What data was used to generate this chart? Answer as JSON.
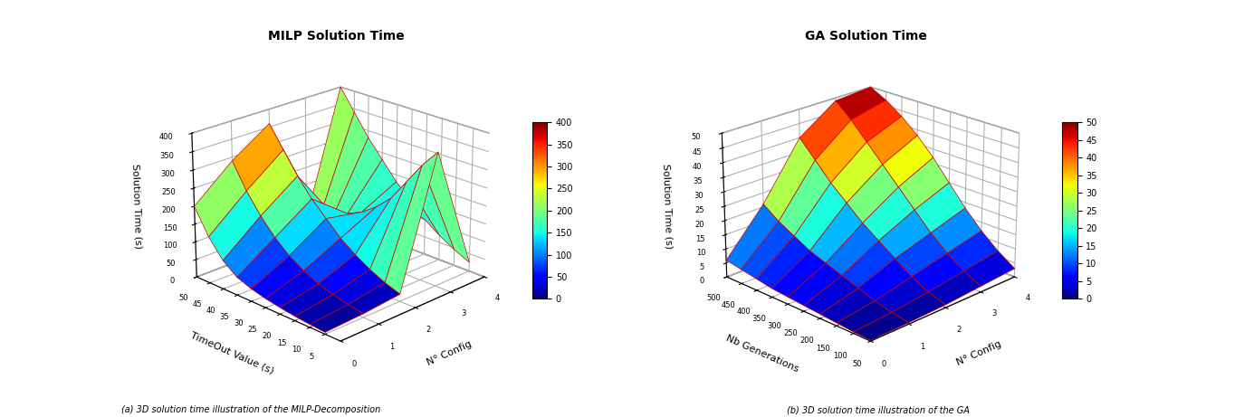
{
  "milp_title": "MILP Solution Time",
  "ga_title": "GA Solution Time",
  "milp_xlabel": "TimeOut Value (s)",
  "ga_xlabel": "Nb Generations",
  "nconfig_label": "N° Config",
  "zlabel": "Solution Time (s)",
  "milp_timeout_values": [
    5,
    10,
    15,
    20,
    25,
    30,
    35,
    40,
    45,
    50
  ],
  "milp_nconfig_values": [
    0,
    1,
    2,
    3,
    4
  ],
  "milp_zlim": [
    0,
    400
  ],
  "milp_zticks": [
    0,
    50,
    100,
    150,
    200,
    250,
    300,
    350,
    400
  ],
  "milp_cbar_ticks": [
    0,
    50,
    100,
    150,
    200,
    250,
    300,
    350,
    400
  ],
  "ga_nbgen_values": [
    50,
    100,
    150,
    200,
    250,
    300,
    350,
    400,
    450,
    500
  ],
  "ga_nconfig_values": [
    0,
    1,
    2,
    3,
    4
  ],
  "ga_zlim": [
    0,
    50
  ],
  "ga_zticks": [
    0,
    5,
    10,
    15,
    20,
    25,
    30,
    35,
    40,
    45,
    50
  ],
  "ga_cbar_ticks": [
    0,
    5,
    10,
    15,
    20,
    25,
    30,
    35,
    40,
    45,
    50
  ],
  "milp_data": [
    [
      5,
      8,
      12,
      18,
      25,
      35,
      50,
      80,
      130,
      200
    ],
    [
      10,
      18,
      28,
      40,
      60,
      85,
      120,
      165,
      220,
      290
    ],
    [
      20,
      35,
      55,
      80,
      110,
      150,
      190,
      240,
      300,
      360
    ],
    [
      370,
      320,
      260,
      200,
      160,
      130,
      110,
      90,
      70,
      50
    ],
    [
      25,
      45,
      70,
      100,
      140,
      180,
      230,
      280,
      340,
      400
    ]
  ],
  "ga_data": [
    [
      0.2,
      0.5,
      1.0,
      1.5,
      2.0,
      2.5,
      3.0,
      4.0,
      5.0,
      6.0
    ],
    [
      0.5,
      1.5,
      3.0,
      5.0,
      7.0,
      9.0,
      11.0,
      14.0,
      17.0,
      21.0
    ],
    [
      1.0,
      3.0,
      6.0,
      10.0,
      14.0,
      18.0,
      23.0,
      28.0,
      34.0,
      40.0
    ],
    [
      2.0,
      5.0,
      9.0,
      14.0,
      20.0,
      26.0,
      32.0,
      38.0,
      44.0,
      49.0
    ],
    [
      3.0,
      7.0,
      12.0,
      18.0,
      25.0,
      32.0,
      38.0,
      43.0,
      47.0,
      50.0
    ]
  ],
  "edge_color": "#cc0000",
  "caption_left": "(a) 3D solution time illustration of the MILP-Decomposition",
  "caption_right": "(b) 3D solution time illustration of the GA",
  "milp_elev": 22,
  "milp_azim": 225,
  "ga_elev": 22,
  "ga_azim": 225
}
